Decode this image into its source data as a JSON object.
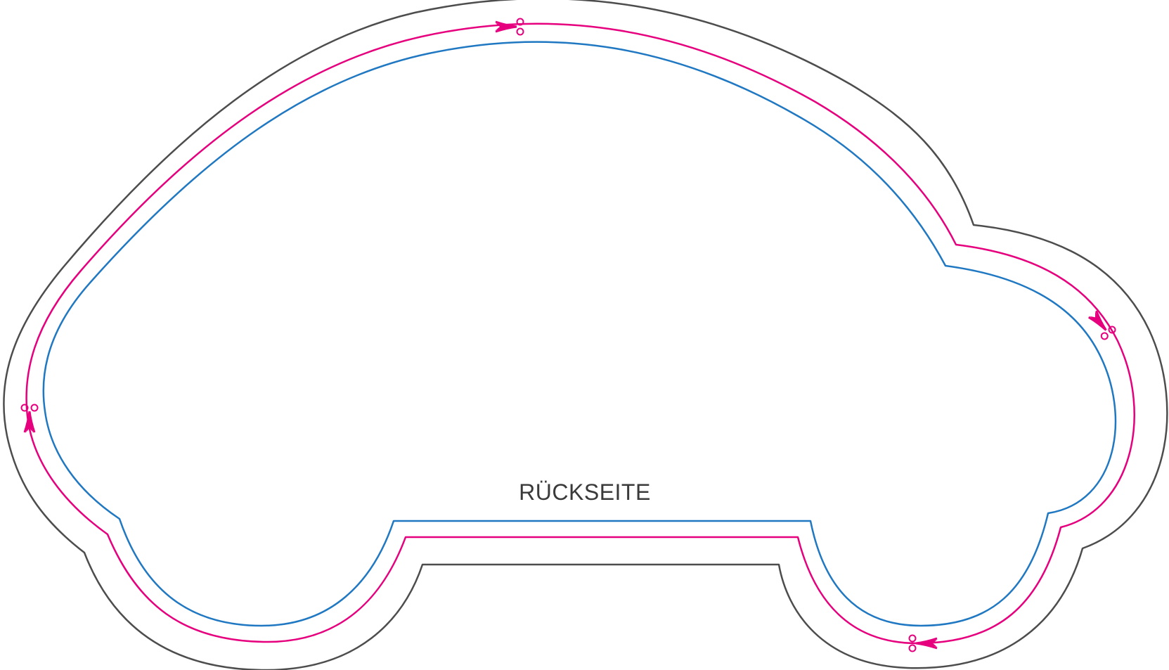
{
  "label": {
    "text": "RÜCKSEITE"
  },
  "lines": [
    {
      "name": "outer-bleed-line",
      "color": "#4d4d4d"
    },
    {
      "name": "cut-line",
      "color": "#e6007e"
    },
    {
      "name": "safe-zone-line",
      "color": "#1f78c1"
    }
  ],
  "label_color": "#3a3a3a",
  "cut_markers": [
    {
      "name": "scissors-icon-top"
    },
    {
      "name": "scissors-icon-right"
    },
    {
      "name": "scissors-icon-bottom-right"
    },
    {
      "name": "scissors-icon-left"
    }
  ]
}
